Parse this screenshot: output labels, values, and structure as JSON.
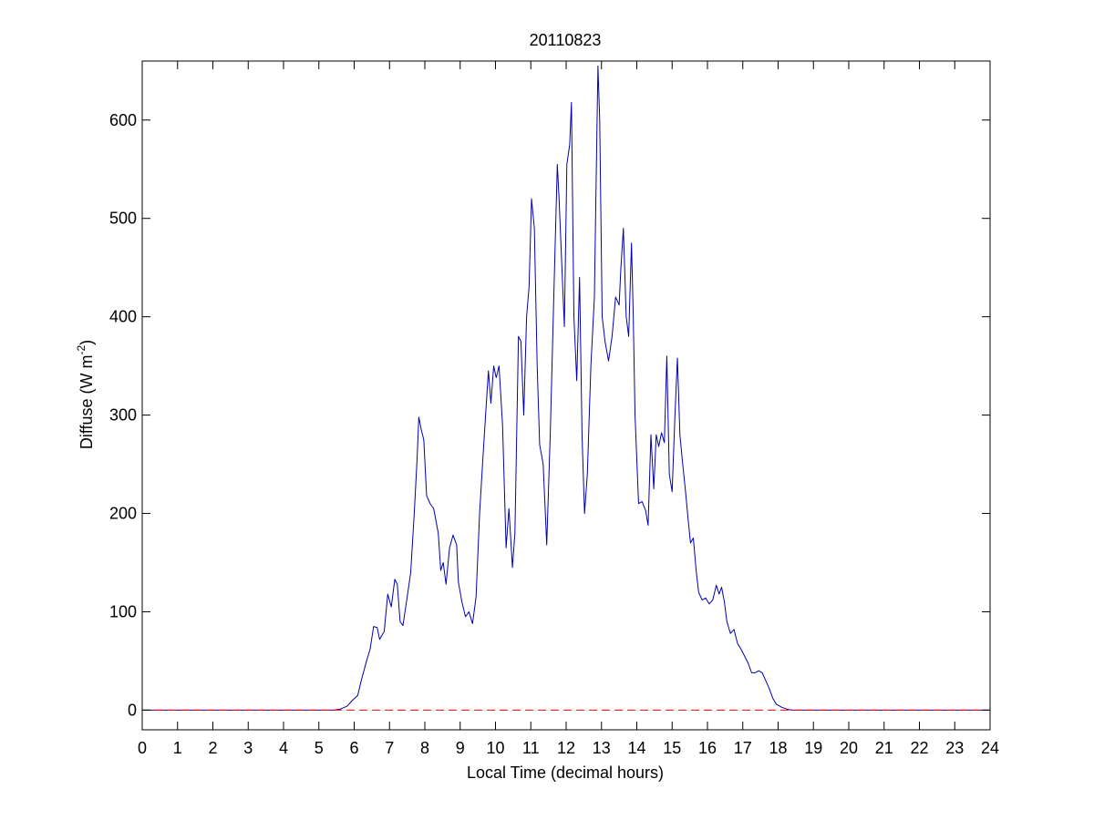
{
  "chart_data": {
    "type": "line",
    "title": "20110823",
    "xlabel": "Local Time (decimal hours)",
    "ylabel": {
      "base": "Diffuse (W m",
      "superscript": "-2",
      "close": ")"
    },
    "xlim": [
      0,
      24
    ],
    "ylim": [
      -20,
      660
    ],
    "xticks": [
      0,
      1,
      2,
      3,
      4,
      5,
      6,
      7,
      8,
      9,
      10,
      11,
      12,
      13,
      14,
      15,
      16,
      17,
      18,
      19,
      20,
      21,
      22,
      23,
      24
    ],
    "yticks": [
      0,
      100,
      200,
      300,
      400,
      500,
      600
    ],
    "grid": false,
    "series": [
      {
        "color": "#0000b0",
        "style": "solid",
        "points": [
          [
            0,
            0
          ],
          [
            5.4,
            0
          ],
          [
            5.6,
            1
          ],
          [
            5.8,
            4
          ],
          [
            5.95,
            10
          ],
          [
            6.1,
            15
          ],
          [
            6.2,
            30
          ],
          [
            6.35,
            50
          ],
          [
            6.45,
            62
          ],
          [
            6.55,
            85
          ],
          [
            6.65,
            84
          ],
          [
            6.72,
            72
          ],
          [
            6.85,
            80
          ],
          [
            6.95,
            118
          ],
          [
            7.05,
            105
          ],
          [
            7.15,
            133
          ],
          [
            7.22,
            128
          ],
          [
            7.3,
            90
          ],
          [
            7.38,
            86
          ],
          [
            7.5,
            115
          ],
          [
            7.6,
            140
          ],
          [
            7.7,
            200
          ],
          [
            7.78,
            255
          ],
          [
            7.83,
            298
          ],
          [
            7.9,
            285
          ],
          [
            7.97,
            275
          ],
          [
            8.05,
            218
          ],
          [
            8.15,
            210
          ],
          [
            8.25,
            205
          ],
          [
            8.38,
            180
          ],
          [
            8.45,
            142
          ],
          [
            8.52,
            150
          ],
          [
            8.6,
            128
          ],
          [
            8.7,
            165
          ],
          [
            8.8,
            178
          ],
          [
            8.9,
            168
          ],
          [
            8.95,
            130
          ],
          [
            9.05,
            110
          ],
          [
            9.15,
            95
          ],
          [
            9.25,
            100
          ],
          [
            9.35,
            88
          ],
          [
            9.45,
            115
          ],
          [
            9.55,
            200
          ],
          [
            9.65,
            260
          ],
          [
            9.72,
            300
          ],
          [
            9.8,
            345
          ],
          [
            9.87,
            312
          ],
          [
            9.95,
            350
          ],
          [
            10.02,
            338
          ],
          [
            10.1,
            350
          ],
          [
            10.2,
            290
          ],
          [
            10.3,
            165
          ],
          [
            10.38,
            205
          ],
          [
            10.48,
            145
          ],
          [
            10.55,
            180
          ],
          [
            10.65,
            380
          ],
          [
            10.72,
            375
          ],
          [
            10.8,
            300
          ],
          [
            10.88,
            400
          ],
          [
            10.95,
            430
          ],
          [
            11.02,
            520
          ],
          [
            11.1,
            490
          ],
          [
            11.18,
            350
          ],
          [
            11.25,
            270
          ],
          [
            11.35,
            250
          ],
          [
            11.45,
            168
          ],
          [
            11.55,
            280
          ],
          [
            11.65,
            420
          ],
          [
            11.75,
            555
          ],
          [
            11.8,
            520
          ],
          [
            11.88,
            450
          ],
          [
            11.95,
            390
          ],
          [
            12.02,
            555
          ],
          [
            12.1,
            575
          ],
          [
            12.15,
            618
          ],
          [
            12.22,
            400
          ],
          [
            12.3,
            335
          ],
          [
            12.38,
            440
          ],
          [
            12.45,
            280
          ],
          [
            12.52,
            200
          ],
          [
            12.6,
            240
          ],
          [
            12.7,
            350
          ],
          [
            12.8,
            420
          ],
          [
            12.85,
            540
          ],
          [
            12.9,
            655
          ],
          [
            12.95,
            600
          ],
          [
            13.02,
            400
          ],
          [
            13.1,
            375
          ],
          [
            13.2,
            355
          ],
          [
            13.3,
            380
          ],
          [
            13.4,
            420
          ],
          [
            13.5,
            412
          ],
          [
            13.55,
            450
          ],
          [
            13.62,
            490
          ],
          [
            13.7,
            400
          ],
          [
            13.77,
            380
          ],
          [
            13.85,
            475
          ],
          [
            13.9,
            400
          ],
          [
            13.95,
            300
          ],
          [
            14.05,
            210
          ],
          [
            14.15,
            212
          ],
          [
            14.25,
            203
          ],
          [
            14.32,
            188
          ],
          [
            14.4,
            280
          ],
          [
            14.48,
            225
          ],
          [
            14.55,
            280
          ],
          [
            14.62,
            268
          ],
          [
            14.7,
            282
          ],
          [
            14.78,
            272
          ],
          [
            14.85,
            360
          ],
          [
            14.92,
            240
          ],
          [
            15.0,
            222
          ],
          [
            15.08,
            300
          ],
          [
            15.15,
            358
          ],
          [
            15.22,
            280
          ],
          [
            15.3,
            250
          ],
          [
            15.38,
            222
          ],
          [
            15.45,
            195
          ],
          [
            15.52,
            170
          ],
          [
            15.6,
            175
          ],
          [
            15.68,
            142
          ],
          [
            15.75,
            120
          ],
          [
            15.85,
            112
          ],
          [
            15.95,
            114
          ],
          [
            16.05,
            108
          ],
          [
            16.15,
            112
          ],
          [
            16.25,
            127
          ],
          [
            16.33,
            118
          ],
          [
            16.4,
            125
          ],
          [
            16.48,
            110
          ],
          [
            16.55,
            90
          ],
          [
            16.65,
            78
          ],
          [
            16.75,
            82
          ],
          [
            16.85,
            68
          ],
          [
            16.95,
            62
          ],
          [
            17.05,
            55
          ],
          [
            17.15,
            48
          ],
          [
            17.25,
            38
          ],
          [
            17.35,
            38
          ],
          [
            17.45,
            40
          ],
          [
            17.55,
            38
          ],
          [
            17.65,
            30
          ],
          [
            17.75,
            22
          ],
          [
            17.85,
            12
          ],
          [
            17.95,
            6
          ],
          [
            18.1,
            3
          ],
          [
            18.25,
            1
          ],
          [
            18.4,
            0
          ],
          [
            24,
            0
          ]
        ]
      },
      {
        "color": "#ff0000",
        "style": "dashed",
        "points": [
          [
            0,
            0
          ],
          [
            24,
            0
          ]
        ]
      }
    ]
  }
}
